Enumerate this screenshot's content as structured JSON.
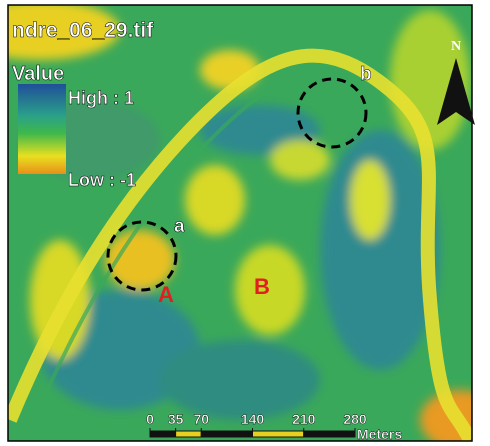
{
  "title": "ndre_06_29.tif",
  "legend": {
    "heading": "Value",
    "high": "High : 1",
    "low": "Low : -1"
  },
  "north": "N",
  "markers": [
    {
      "label": "a"
    },
    {
      "label": "b"
    }
  ],
  "regions": [
    {
      "label": "A"
    },
    {
      "label": "B"
    }
  ],
  "scale_bar": {
    "ticks": [
      0,
      35,
      70,
      140,
      210,
      280
    ],
    "unit": "Meters"
  }
}
